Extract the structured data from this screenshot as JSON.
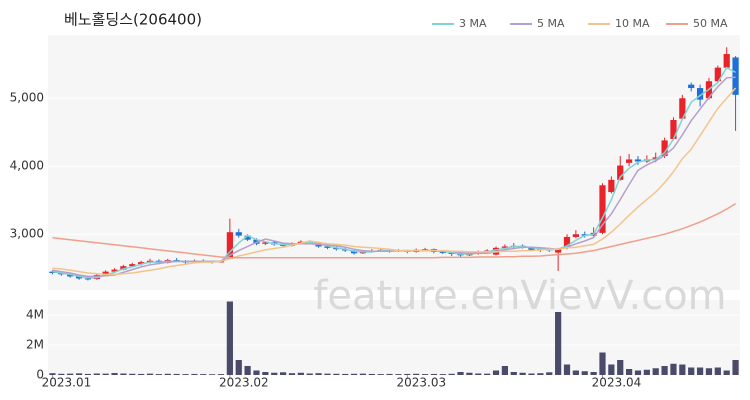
{
  "chart_data": {
    "type": "candlestick",
    "title": "베노홀딩스(206400)",
    "watermark": "feature.enVievV.com",
    "categories": [
      "2023.01",
      null,
      null,
      null,
      null,
      null,
      null,
      null,
      null,
      null,
      null,
      null,
      null,
      null,
      null,
      null,
      null,
      null,
      null,
      null,
      "2023.02",
      null,
      null,
      null,
      null,
      null,
      null,
      null,
      null,
      null,
      null,
      null,
      null,
      null,
      null,
      null,
      null,
      null,
      null,
      null,
      "2023.03",
      null,
      null,
      null,
      null,
      null,
      null,
      null,
      null,
      null,
      null,
      null,
      null,
      null,
      null,
      null,
      null,
      null,
      null,
      null,
      null,
      null,
      "2023.04",
      null,
      null,
      null,
      null,
      null,
      null,
      null,
      null,
      null,
      null,
      null,
      null,
      null,
      null,
      null
    ],
    "open": [
      2450,
      2430,
      2410,
      2380,
      2350,
      2340,
      2400,
      2450,
      2480,
      2530,
      2560,
      2590,
      2610,
      2580,
      2620,
      2600,
      2590,
      2610,
      2600,
      2590,
      2640,
      3030,
      2980,
      2920,
      2860,
      2880,
      2850,
      2830,
      2860,
      2890,
      2880,
      2820,
      2800,
      2780,
      2760,
      2720,
      2740,
      2760,
      2770,
      2750,
      2760,
      2740,
      2770,
      2780,
      2740,
      2730,
      2710,
      2690,
      2720,
      2740,
      2700,
      2800,
      2820,
      2830,
      2810,
      2770,
      2790,
      2730,
      2800,
      2960,
      3000,
      2980,
      3020,
      3620,
      3800,
      4050,
      4100,
      4070,
      4100,
      4150,
      4400,
      4700,
      5200,
      5150,
      5000,
      5250,
      5450,
      5600
    ],
    "high": [
      2470,
      2440,
      2420,
      2400,
      2380,
      2420,
      2470,
      2500,
      2550,
      2580,
      2610,
      2640,
      2630,
      2640,
      2650,
      2620,
      2630,
      2630,
      2610,
      2620,
      3230,
      3080,
      3000,
      2940,
      2900,
      2900,
      2870,
      2880,
      2910,
      2910,
      2890,
      2840,
      2820,
      2800,
      2770,
      2760,
      2780,
      2790,
      2780,
      2780,
      2770,
      2790,
      2800,
      2790,
      2760,
      2740,
      2720,
      2740,
      2760,
      2780,
      2820,
      2850,
      2870,
      2850,
      2820,
      2810,
      2800,
      2800,
      3000,
      3060,
      3040,
      3100,
      3750,
      3850,
      4150,
      4180,
      4150,
      4160,
      4200,
      4420,
      4720,
      5050,
      5230,
      5200,
      5300,
      5480,
      5750,
      5620
    ],
    "low": [
      2410,
      2390,
      2360,
      2330,
      2320,
      2330,
      2390,
      2430,
      2470,
      2510,
      2540,
      2570,
      2560,
      2570,
      2590,
      2570,
      2580,
      2580,
      2570,
      2580,
      2630,
      2950,
      2900,
      2840,
      2840,
      2830,
      2810,
      2820,
      2850,
      2860,
      2800,
      2780,
      2760,
      2740,
      2700,
      2710,
      2730,
      2740,
      2730,
      2740,
      2720,
      2730,
      2750,
      2720,
      2710,
      2680,
      2660,
      2680,
      2700,
      2720,
      2690,
      2780,
      2800,
      2790,
      2750,
      2740,
      2740,
      2460,
      2780,
      2940,
      2950,
      2970,
      3000,
      3600,
      3790,
      4000,
      4020,
      4050,
      4060,
      4120,
      4380,
      4680,
      5100,
      4880,
      4980,
      5230,
      5430,
      4520
    ],
    "close": [
      2430,
      2410,
      2380,
      2350,
      2340,
      2400,
      2450,
      2480,
      2530,
      2560,
      2590,
      2610,
      2580,
      2620,
      2600,
      2590,
      2610,
      2600,
      2590,
      2600,
      3030,
      2980,
      2920,
      2860,
      2880,
      2850,
      2830,
      2860,
      2890,
      2880,
      2820,
      2800,
      2780,
      2760,
      2720,
      2740,
      2760,
      2770,
      2750,
      2760,
      2740,
      2770,
      2780,
      2740,
      2730,
      2710,
      2690,
      2720,
      2740,
      2760,
      2800,
      2820,
      2830,
      2810,
      2770,
      2790,
      2760,
      2780,
      2960,
      3000,
      2980,
      3020,
      3720,
      3800,
      4010,
      4100,
      4070,
      4100,
      4130,
      4380,
      4680,
      5000,
      5150,
      4980,
      5250,
      5450,
      5650,
      5050
    ],
    "up_color": "#e8232a",
    "down_color": "#1e6fd6",
    "ylim": [
      2180,
      5930
    ],
    "yticks": [
      {
        "value": 3000,
        "label": "3,000"
      },
      {
        "value": 4000,
        "label": "4,000"
      },
      {
        "value": 5000,
        "label": "5,000"
      }
    ],
    "ma": [
      {
        "name": "3 MA",
        "color": "#7fd3d3",
        "values": [
          2450,
          2430,
          2410,
          2380,
          2360,
          2360,
          2400,
          2440,
          2490,
          2520,
          2560,
          2590,
          2590,
          2600,
          2600,
          2600,
          2600,
          2600,
          2600,
          2600,
          2740,
          2870,
          2980,
          2920,
          2890,
          2860,
          2850,
          2850,
          2860,
          2880,
          2860,
          2830,
          2800,
          2780,
          2750,
          2740,
          2740,
          2760,
          2760,
          2760,
          2750,
          2760,
          2760,
          2760,
          2750,
          2730,
          2710,
          2710,
          2720,
          2740,
          2770,
          2790,
          2820,
          2820,
          2800,
          2790,
          2770,
          2780,
          2830,
          2910,
          2980,
          3000,
          3240,
          3510,
          3840,
          3970,
          4060,
          4090,
          4100,
          4200,
          4400,
          4690,
          4940,
          5040,
          5130,
          5230,
          5450,
          5380
        ]
      },
      {
        "name": "5 MA",
        "color": "#b59fcc",
        "values": [
          2470,
          2450,
          2430,
          2400,
          2380,
          2380,
          2390,
          2400,
          2440,
          2480,
          2520,
          2550,
          2570,
          2590,
          2600,
          2600,
          2600,
          2600,
          2600,
          2600,
          2690,
          2760,
          2820,
          2880,
          2930,
          2900,
          2870,
          2860,
          2860,
          2860,
          2850,
          2840,
          2830,
          2810,
          2780,
          2760,
          2750,
          2750,
          2750,
          2760,
          2760,
          2760,
          2760,
          2760,
          2750,
          2750,
          2730,
          2720,
          2720,
          2720,
          2740,
          2770,
          2790,
          2810,
          2810,
          2800,
          2790,
          2780,
          2810,
          2860,
          2900,
          2950,
          3140,
          3300,
          3510,
          3730,
          3940,
          4020,
          4080,
          4160,
          4270,
          4460,
          4670,
          4840,
          5010,
          5170,
          5300,
          5310
        ]
      },
      {
        "name": "10 MA",
        "color": "#f3c48a",
        "values": [
          2500,
          2490,
          2470,
          2450,
          2430,
          2420,
          2410,
          2410,
          2420,
          2430,
          2450,
          2470,
          2490,
          2520,
          2540,
          2560,
          2580,
          2590,
          2590,
          2600,
          2640,
          2680,
          2710,
          2740,
          2770,
          2790,
          2810,
          2840,
          2870,
          2900,
          2880,
          2860,
          2850,
          2840,
          2820,
          2810,
          2800,
          2790,
          2780,
          2760,
          2760,
          2760,
          2760,
          2760,
          2760,
          2750,
          2750,
          2740,
          2740,
          2740,
          2740,
          2750,
          2750,
          2760,
          2760,
          2770,
          2780,
          2780,
          2800,
          2810,
          2830,
          2850,
          2930,
          3030,
          3150,
          3280,
          3400,
          3510,
          3620,
          3760,
          3920,
          4110,
          4250,
          4450,
          4650,
          4850,
          5000,
          5150
        ]
      },
      {
        "name": "50 MA",
        "color": "#f0a08a",
        "values": [
          2950,
          2935,
          2920,
          2905,
          2890,
          2875,
          2860,
          2845,
          2830,
          2815,
          2800,
          2785,
          2770,
          2755,
          2740,
          2725,
          2710,
          2695,
          2680,
          2665,
          2655,
          2655,
          2655,
          2655,
          2655,
          2655,
          2655,
          2655,
          2655,
          2655,
          2655,
          2655,
          2655,
          2655,
          2655,
          2655,
          2655,
          2655,
          2655,
          2655,
          2655,
          2655,
          2655,
          2655,
          2660,
          2660,
          2660,
          2660,
          2665,
          2665,
          2665,
          2670,
          2670,
          2675,
          2675,
          2680,
          2690,
          2700,
          2710,
          2720,
          2740,
          2760,
          2790,
          2820,
          2850,
          2880,
          2910,
          2940,
          2970,
          3000,
          3040,
          3080,
          3130,
          3180,
          3240,
          3300,
          3370,
          3450
        ]
      }
    ],
    "volume": {
      "color": "#4a4a6a",
      "values": [
        120000,
        80000,
        90000,
        110000,
        70000,
        100000,
        90000,
        130000,
        100000,
        80000,
        70000,
        90000,
        60000,
        80000,
        70000,
        60000,
        70000,
        60000,
        50000,
        60000,
        4900000,
        1000000,
        600000,
        300000,
        200000,
        150000,
        180000,
        120000,
        150000,
        100000,
        120000,
        90000,
        80000,
        70000,
        80000,
        90000,
        70000,
        60000,
        70000,
        60000,
        70000,
        80000,
        60000,
        70000,
        60000,
        80000,
        200000,
        150000,
        100000,
        90000,
        300000,
        600000,
        200000,
        150000,
        100000,
        120000,
        180000,
        4200000,
        700000,
        300000,
        250000,
        200000,
        1500000,
        700000,
        1000000,
        400000,
        300000,
        350000,
        450000,
        600000,
        750000,
        700000,
        500000,
        500000,
        450000,
        500000,
        300000,
        1000000
      ],
      "ylim": [
        0,
        5000000
      ],
      "yticks": [
        {
          "value": 0,
          "label": "0"
        },
        {
          "value": 2000000,
          "label": "2M"
        },
        {
          "value": 4000000,
          "label": "4M"
        }
      ]
    }
  }
}
